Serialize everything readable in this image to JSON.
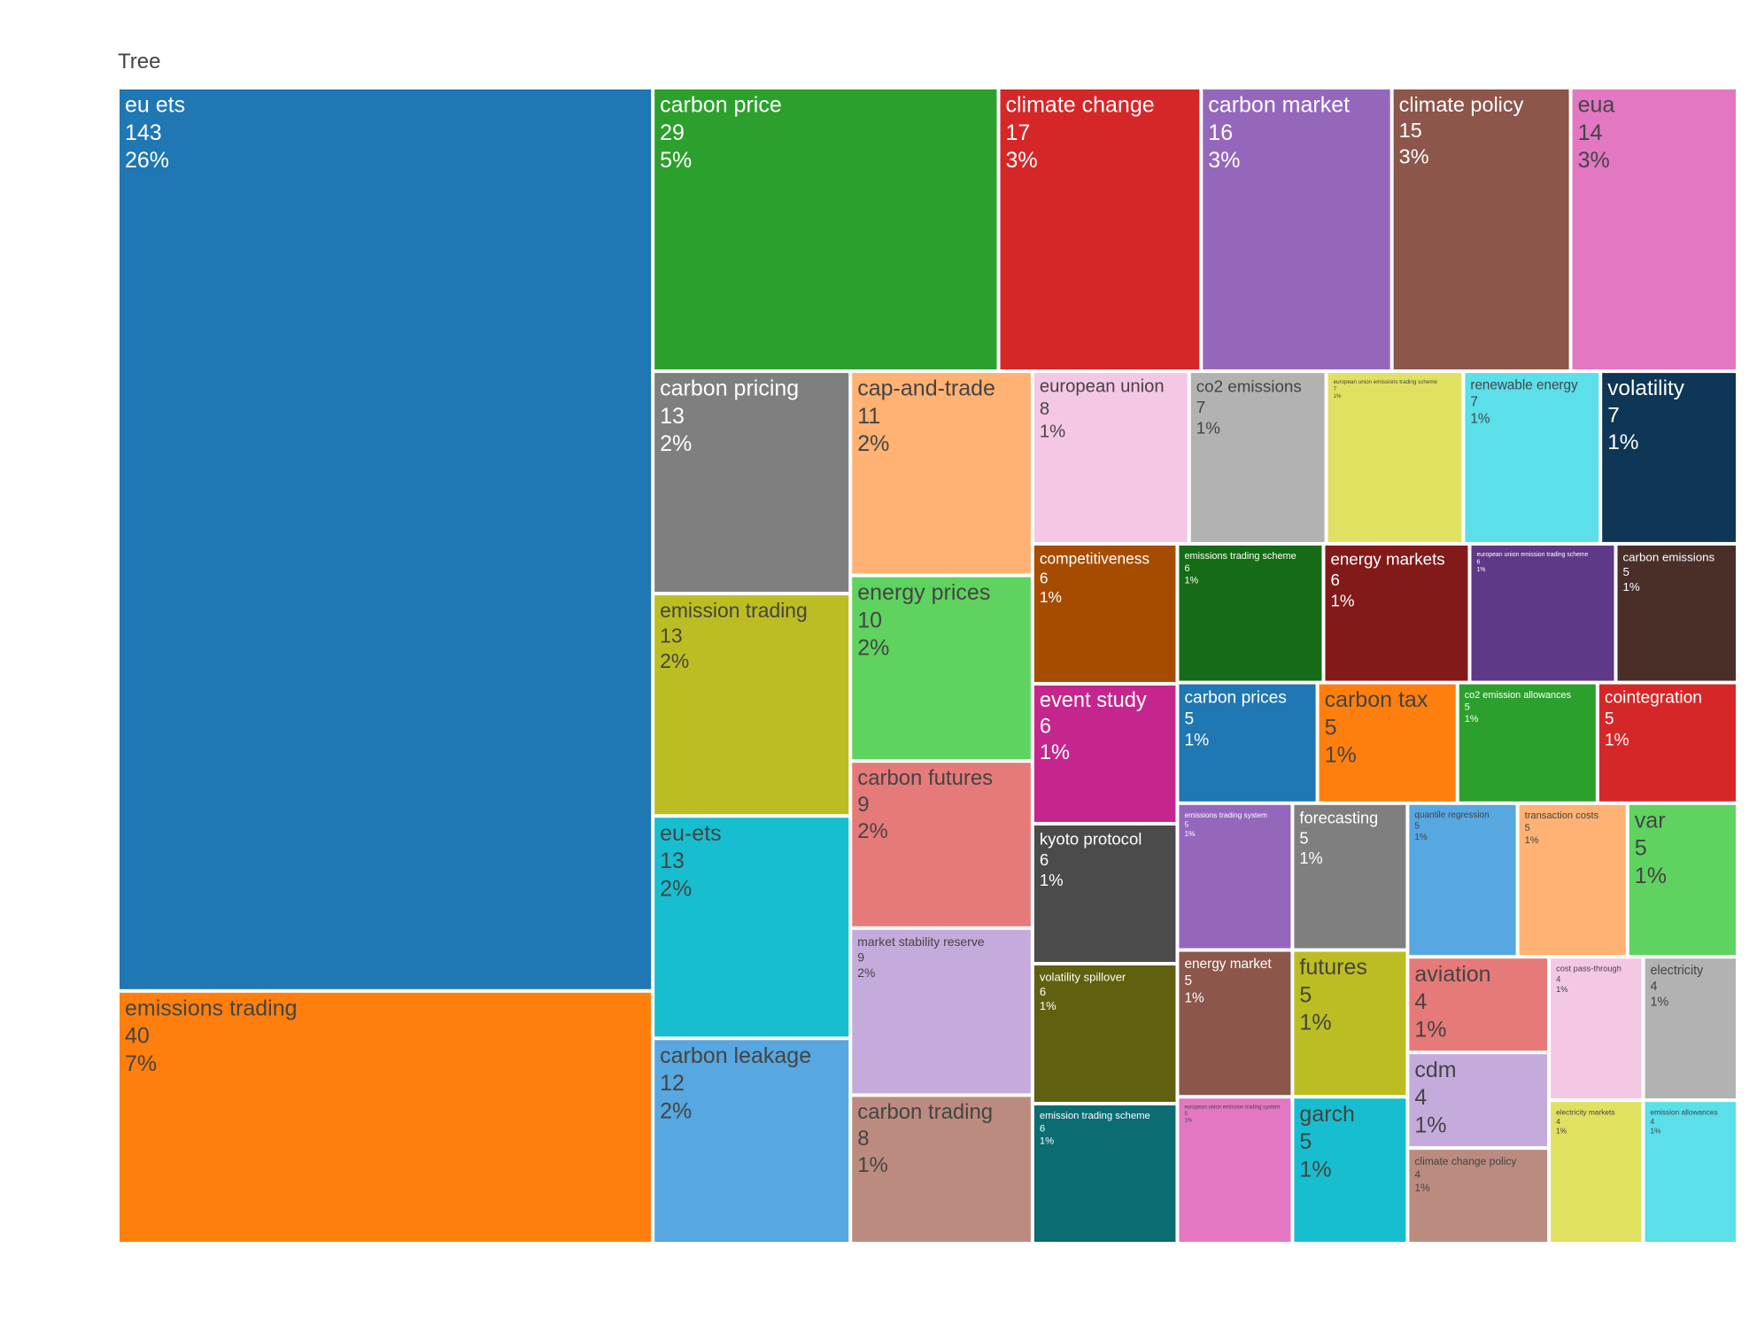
{
  "chart_data": {
    "type": "treemap",
    "title": "Tree",
    "labels": [
      "eu ets",
      "emissions trading",
      "carbon price",
      "climate change",
      "carbon market",
      "climate policy",
      "eua",
      "carbon pricing",
      "emission trading",
      "eu-ets",
      "carbon leakage",
      "cap-and-trade",
      "energy prices",
      "carbon futures",
      "market stability reserve",
      "carbon trading",
      "european union",
      "co2 emissions",
      "european union emissions trading scheme",
      "renewable energy",
      "volatility",
      "competitiveness",
      "event study",
      "kyoto protocol",
      "volatility spillover",
      "emission trading scheme",
      "emissions trading scheme",
      "energy markets",
      "european union emission trading scheme",
      "carbon emissions",
      "carbon prices",
      "carbon tax",
      "co2 emission allowances",
      "cointegration",
      "emissions trading system",
      "energy market",
      "european union emission trading system",
      "forecasting",
      "futures",
      "garch",
      "quantile regression",
      "transaction costs",
      "var",
      "aviation",
      "cdm",
      "climate change policy",
      "cost pass-through",
      "electricity",
      "electricity markets",
      "emission allowances"
    ],
    "values": [
      143,
      40,
      29,
      17,
      16,
      15,
      14,
      13,
      13,
      13,
      12,
      11,
      10,
      9,
      9,
      8,
      8,
      7,
      7,
      7,
      7,
      6,
      6,
      6,
      6,
      6,
      6,
      6,
      6,
      5,
      5,
      5,
      5,
      5,
      5,
      5,
      5,
      5,
      5,
      5,
      5,
      5,
      5,
      4,
      4,
      4,
      4,
      4,
      4,
      4
    ],
    "percent_labels": [
      "26%",
      "7%",
      "5%",
      "3%",
      "3%",
      "3%",
      "3%",
      "2%",
      "2%",
      "2%",
      "2%",
      "2%",
      "2%",
      "2%",
      "2%",
      "1%",
      "1%",
      "1%",
      "1%",
      "1%",
      "1%",
      "1%",
      "1%",
      "1%",
      "1%",
      "1%",
      "1%",
      "1%",
      "1%",
      "1%",
      "1%",
      "1%",
      "1%",
      "1%",
      "1%",
      "1%",
      "1%",
      "1%",
      "1%",
      "1%",
      "1%",
      "1%",
      "1%",
      "1%",
      "1%",
      "1%",
      "1%",
      "1%",
      "1%",
      "1%"
    ],
    "colors": [
      "#1f77b4",
      "#ff7f0e",
      "#2ca02c",
      "#d62728",
      "#9467bd",
      "#8c564b",
      "#e377c2",
      "#7f7f7f",
      "#bcbd22",
      "#17becf",
      "#57a7e0",
      "#ffb273",
      "#5fd35f",
      "#e67a78",
      "#c5abdc",
      "#bc8b80",
      "#f4c8e5",
      "#b2b2b2",
      "#e1e161",
      "#5bdfe9",
      "#0e3656",
      "#a64c00",
      "#c5268e",
      "#4b4b4b",
      "#60600f",
      "#0b6c72",
      "#166b16",
      "#831a1a",
      "#5f3887",
      "#4a2e28",
      "#1f77b4",
      "#ff7f0e",
      "#2ca02c",
      "#d62728",
      "#9467bd",
      "#8c564b",
      "#e377c2",
      "#7f7f7f",
      "#bcbd22",
      "#17becf",
      "#57a7e0",
      "#ffb273",
      "#5fd35f",
      "#e67a78",
      "#c5abdc",
      "#bc8b80",
      "#f4c8e5",
      "#b2b2b2",
      "#e1e161",
      "#5bdfe9"
    ]
  }
}
